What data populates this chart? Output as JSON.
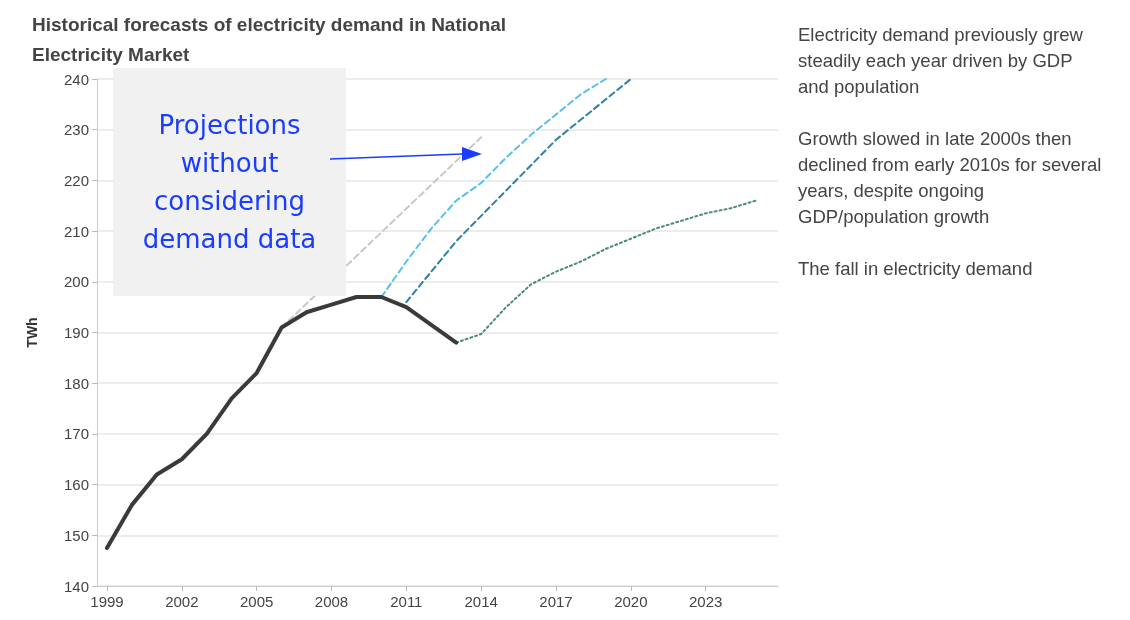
{
  "chart_data": {
    "type": "line",
    "title": "Historical forecasts of electricity demand in National Electricity Market",
    "ylabel": "TWh",
    "xlim": [
      1998.6,
      2025.9
    ],
    "xticks": [
      1999,
      2002,
      2005,
      2008,
      2011,
      2014,
      2017,
      2020,
      2023
    ],
    "ylim": [
      140,
      240
    ],
    "yticks": [
      140,
      150,
      160,
      170,
      180,
      190,
      200,
      210,
      220,
      230,
      240
    ],
    "grid": "y",
    "marker": "none",
    "series": [
      {
        "color": "#3a3a3a",
        "line_style": "solid",
        "x": [
          1999,
          2000,
          2001,
          2002,
          2003,
          2004,
          2005,
          2006,
          2007,
          2008,
          2009,
          2010,
          2011,
          2012,
          2013
        ],
        "values": [
          147.5,
          156,
          162,
          165,
          170,
          177,
          182,
          191,
          194,
          195.5,
          197,
          197,
          195,
          191.5,
          188
        ]
      },
      {
        "color": "#c8c8c8",
        "line_style": "dashed",
        "x": [
          2006,
          2014
        ],
        "values": [
          191,
          228.5
        ]
      },
      {
        "color": "#5bbfea",
        "line_style": "dashed",
        "x": [
          2010,
          2011,
          2012,
          2013,
          2014,
          2015,
          2016,
          2017,
          2018,
          2019
        ],
        "values": [
          197,
          204,
          210.5,
          216,
          219.5,
          224.5,
          229,
          233,
          237,
          240
        ]
      },
      {
        "color": "#2f7fa8",
        "line_style": "dashed",
        "x": [
          2011,
          2012,
          2013,
          2014,
          2015,
          2016,
          2017,
          2018,
          2019,
          2020
        ],
        "values": [
          196,
          202,
          208,
          213,
          218,
          223,
          228,
          232,
          236,
          240
        ]
      },
      {
        "color": "#4a8a7a",
        "line_style": "dotted",
        "x": [
          2013,
          2014,
          2015,
          2016,
          2017,
          2018,
          2019,
          2020,
          2021,
          2022,
          2023,
          2024,
          2025
        ],
        "values": [
          188,
          189.7,
          195,
          199.5,
          202,
          204,
          206.5,
          208.5,
          210.5,
          212,
          213.5,
          214.5,
          216
        ]
      }
    ],
    "annotations": [
      "Projections without considering demand data",
      "Electricity demand previously grew steadily each year driven by GDP and population",
      "Growth slowed in late 2000s then declined  from early 2010s for several years, despite ongoing GDP/population growth",
      "The fall in electricity demand"
    ]
  }
}
